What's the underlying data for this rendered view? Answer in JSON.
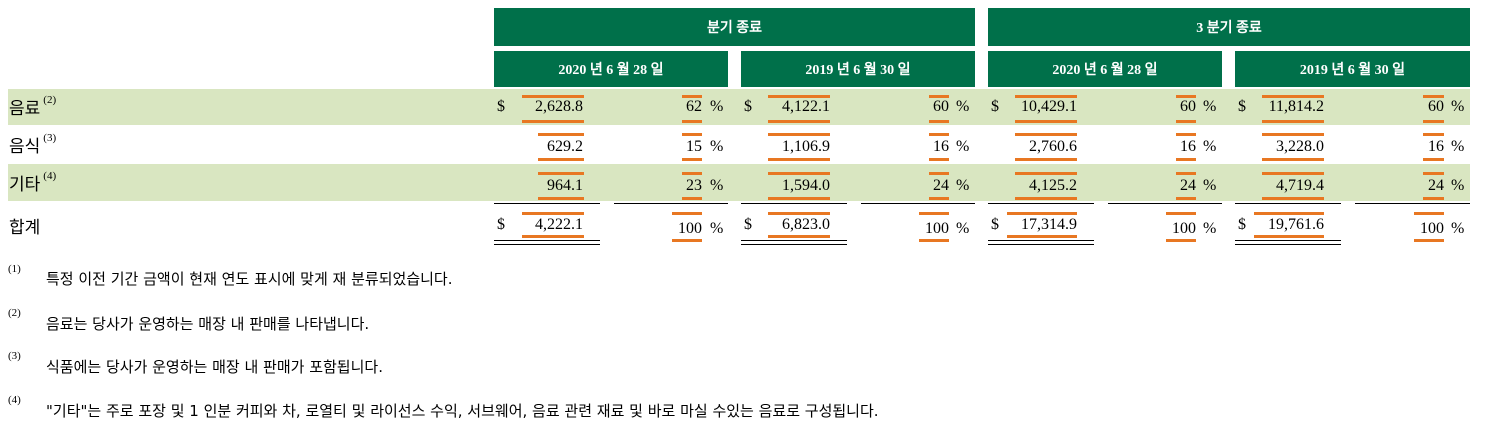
{
  "header": {
    "group1": "분기 종료",
    "group2": "3 분기 종료",
    "col1": "2020 년 6 월 28 일",
    "col2": "2019 년 6 월 30 일",
    "col3": "2020 년 6 월 28 일",
    "col4": "2019 년 6 월 30 일"
  },
  "rows": [
    {
      "label": "음료",
      "note": "(2)",
      "cols": [
        {
          "dollar": "$",
          "amount": "2,628.8",
          "pct": "62",
          "sign": "%"
        },
        {
          "dollar": "$",
          "amount": "4,122.1",
          "pct": "60",
          "sign": "%"
        },
        {
          "dollar": "$",
          "amount": "10,429.1",
          "pct": "60",
          "sign": "%"
        },
        {
          "dollar": "$",
          "amount": "11,814.2",
          "pct": "60",
          "sign": "%"
        }
      ]
    },
    {
      "label": "음식",
      "note": "(3)",
      "cols": [
        {
          "dollar": "",
          "amount": "629.2",
          "pct": "15",
          "sign": "%"
        },
        {
          "dollar": "",
          "amount": "1,106.9",
          "pct": "16",
          "sign": "%"
        },
        {
          "dollar": "",
          "amount": "2,760.6",
          "pct": "16",
          "sign": "%"
        },
        {
          "dollar": "",
          "amount": "3,228.0",
          "pct": "16",
          "sign": "%"
        }
      ]
    },
    {
      "label": "기타",
      "note": "(4)",
      "cols": [
        {
          "dollar": "",
          "amount": "964.1",
          "pct": "23",
          "sign": "%"
        },
        {
          "dollar": "",
          "amount": "1,594.0",
          "pct": "24",
          "sign": "%"
        },
        {
          "dollar": "",
          "amount": "4,125.2",
          "pct": "24",
          "sign": "%"
        },
        {
          "dollar": "",
          "amount": "4,719.4",
          "pct": "24",
          "sign": "%"
        }
      ]
    },
    {
      "label": "합계",
      "note": "",
      "cols": [
        {
          "dollar": "$",
          "amount": "4,222.1",
          "pct": "100",
          "sign": "%"
        },
        {
          "dollar": "$",
          "amount": "6,823.0",
          "pct": "100",
          "sign": "%"
        },
        {
          "dollar": "$",
          "amount": "17,314.9",
          "pct": "100",
          "sign": "%"
        },
        {
          "dollar": "$",
          "amount": "19,761.6",
          "pct": "100",
          "sign": "%"
        }
      ]
    }
  ],
  "footnotes": [
    {
      "mark": "(1)",
      "text": "특정 이전 기간 금액이 현재 연도 표시에 맞게 재 분류되었습니다."
    },
    {
      "mark": "(2)",
      "text": "음료는 당사가 운영하는 매장 내 판매를 나타냅니다."
    },
    {
      "mark": "(3)",
      "text": "식품에는 당사가 운영하는 매장 내 판매가 포함됩니다."
    },
    {
      "mark": "(4)",
      "text": "\"기타\"는 주로 포장 및 1 인분 커피와 차, 로열티 및 라이선스 수익, 서브웨어, 음료 관련 재료 및 바로 마실 수있는 음료로 구성됩니다."
    }
  ],
  "colors": {
    "header_green": "#00704a",
    "band_green": "#d9e6c1",
    "accent_orange": "#e87722"
  }
}
